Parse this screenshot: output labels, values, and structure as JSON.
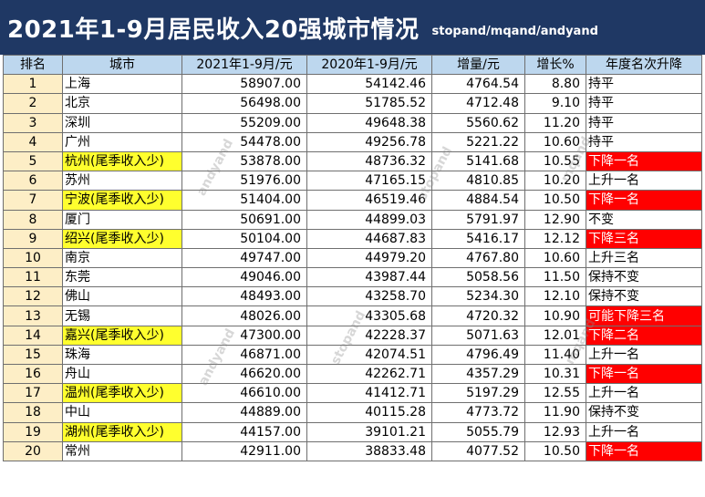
{
  "title": "2021年1-9月居民收入20强城市情况",
  "subtitle": "stopand/mqand/andyand",
  "headers": [
    "排名",
    "城市",
    "2021年1-9月/元",
    "2020年1-9月/元",
    "增量/元",
    "增长%",
    "年度名次升降"
  ],
  "rows": [
    {
      "rank": "1",
      "city": "上海",
      "y2021": "58907.00",
      "y2020": "54142.46",
      "inc": "4764.54",
      "growth": "8.80",
      "change": "持平",
      "city_hl": false,
      "change_red": false
    },
    {
      "rank": "2",
      "city": "北京",
      "y2021": "56498.00",
      "y2020": "51785.52",
      "inc": "4712.48",
      "growth": "9.10",
      "change": "持平",
      "city_hl": false,
      "change_red": false
    },
    {
      "rank": "3",
      "city": "深圳",
      "y2021": "55209.00",
      "y2020": "49648.38",
      "inc": "5560.62",
      "growth": "11.20",
      "change": "持平",
      "city_hl": false,
      "change_red": false
    },
    {
      "rank": "4",
      "city": "广州",
      "y2021": "54478.00",
      "y2020": "49256.78",
      "inc": "5221.22",
      "growth": "10.60",
      "change": "持平",
      "city_hl": false,
      "change_red": false
    },
    {
      "rank": "5",
      "city": "杭州(尾季收入少)",
      "y2021": "53878.00",
      "y2020": "48736.32",
      "inc": "5141.68",
      "growth": "10.55",
      "change": "下降一名",
      "city_hl": true,
      "change_red": true
    },
    {
      "rank": "6",
      "city": "苏州",
      "y2021": "51976.00",
      "y2020": "47165.15",
      "inc": "4810.85",
      "growth": "10.20",
      "change": "上升一名",
      "city_hl": false,
      "change_red": false
    },
    {
      "rank": "7",
      "city": "宁波(尾季收入少)",
      "y2021": "51404.00",
      "y2020": "46519.46",
      "inc": "4884.54",
      "growth": "10.50",
      "change": "下降一名",
      "city_hl": true,
      "change_red": true
    },
    {
      "rank": "8",
      "city": "厦门",
      "y2021": "50691.00",
      "y2020": "44899.03",
      "inc": "5791.97",
      "growth": "12.90",
      "change": "不变",
      "city_hl": false,
      "change_red": false
    },
    {
      "rank": "9",
      "city": "绍兴(尾季收入少)",
      "y2021": "50104.00",
      "y2020": "44687.83",
      "inc": "5416.17",
      "growth": "12.12",
      "change": "下降三名",
      "city_hl": true,
      "change_red": true
    },
    {
      "rank": "10",
      "city": "南京",
      "y2021": "49747.00",
      "y2020": "44979.20",
      "inc": "4767.80",
      "growth": "10.60",
      "change": "上升三名",
      "city_hl": false,
      "change_red": false
    },
    {
      "rank": "11",
      "city": "东莞",
      "y2021": "49046.00",
      "y2020": "43987.44",
      "inc": "5058.56",
      "growth": "11.50",
      "change": "保持不变",
      "city_hl": false,
      "change_red": false
    },
    {
      "rank": "12",
      "city": "佛山",
      "y2021": "48493.00",
      "y2020": "43258.70",
      "inc": "5234.30",
      "growth": "12.10",
      "change": "保持不变",
      "city_hl": false,
      "change_red": false
    },
    {
      "rank": "13",
      "city": "无锡",
      "y2021": "48026.00",
      "y2020": "43305.68",
      "inc": "4720.32",
      "growth": "10.90",
      "change": "可能下降三名",
      "city_hl": false,
      "change_red": true
    },
    {
      "rank": "14",
      "city": "嘉兴(尾季收入少)",
      "y2021": "47300.00",
      "y2020": "42228.37",
      "inc": "5071.63",
      "growth": "12.01",
      "change": "下降二名",
      "city_hl": true,
      "change_red": true
    },
    {
      "rank": "15",
      "city": "珠海",
      "y2021": "46871.00",
      "y2020": "42074.51",
      "inc": "4796.49",
      "growth": "11.40",
      "change": "上升一名",
      "city_hl": false,
      "change_red": false
    },
    {
      "rank": "16",
      "city": "舟山",
      "y2021": "46620.00",
      "y2020": "42262.71",
      "inc": "4357.29",
      "growth": "10.31",
      "change": "下降一名",
      "city_hl": false,
      "change_red": true
    },
    {
      "rank": "17",
      "city": "温州(尾季收入少)",
      "y2021": "46610.00",
      "y2020": "41412.71",
      "inc": "5197.29",
      "growth": "12.55",
      "change": "上升一名",
      "city_hl": true,
      "change_red": false
    },
    {
      "rank": "18",
      "city": "中山",
      "y2021": "44889.00",
      "y2020": "40115.28",
      "inc": "4773.72",
      "growth": "11.90",
      "change": "保持不变",
      "city_hl": false,
      "change_red": false
    },
    {
      "rank": "19",
      "city": "湖州(尾季收入少)",
      "y2021": "44157.00",
      "y2020": "39101.21",
      "inc": "5055.79",
      "growth": "12.93",
      "change": "上升一名",
      "city_hl": true,
      "change_red": false
    },
    {
      "rank": "20",
      "city": "常州",
      "y2021": "42911.00",
      "y2020": "38833.48",
      "inc": "4077.52",
      "growth": "10.50",
      "change": "下降一名",
      "city_hl": false,
      "change_red": true
    }
  ],
  "watermarks": [
    "andyand",
    "stopand",
    "mqand",
    "andyand",
    "stopand",
    "mqand"
  ],
  "colors": {
    "title_bg": "#1f3864",
    "header_bg": "#bdd7ee",
    "rank_bg": "#fdeec6",
    "city_highlight": "#ffff2e",
    "decline_red": "#ff0000"
  }
}
